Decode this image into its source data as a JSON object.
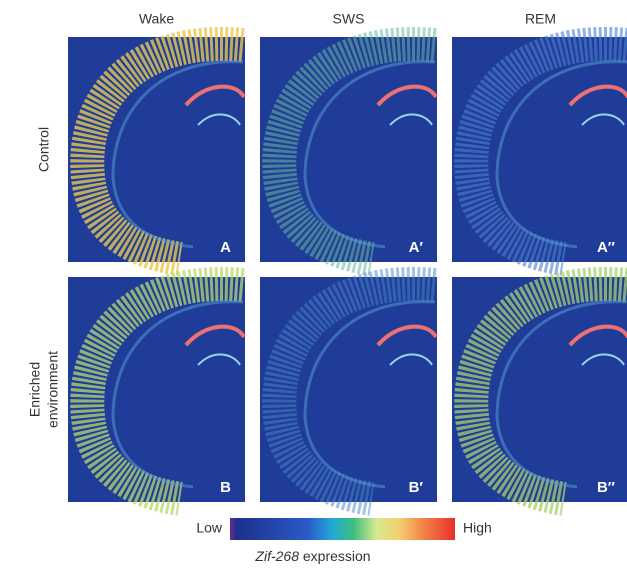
{
  "columns": [
    "Wake",
    "SWS",
    "REM"
  ],
  "rows": [
    [
      "Control"
    ],
    [
      "Enriched",
      "environment"
    ]
  ],
  "panels": [
    [
      "A",
      "A′",
      "A″"
    ],
    [
      "B",
      "B′",
      "B″"
    ]
  ],
  "colorbar": {
    "low": "Low",
    "high": "High"
  },
  "caption": {
    "gene": "Zif-268",
    "text": "expression"
  }
}
